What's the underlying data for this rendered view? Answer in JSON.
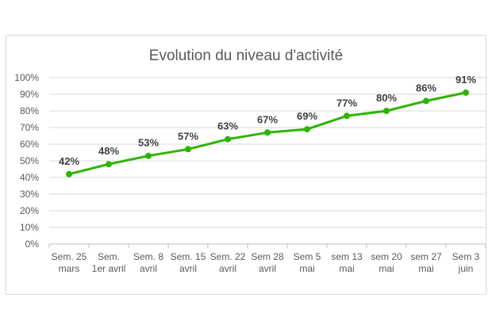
{
  "chart_data": {
    "type": "line",
    "title": "Evolution du niveau d'activité",
    "xlabel": "",
    "ylabel": "",
    "categories": [
      [
        "Sem. 25",
        "mars"
      ],
      [
        "Sem.",
        "1er avril"
      ],
      [
        "Sem. 8",
        "avril"
      ],
      [
        "Sem. 15",
        "avril"
      ],
      [
        "Sem. 22",
        "avril"
      ],
      [
        "Sem 28",
        "avril"
      ],
      [
        "Sem 5",
        "mai"
      ],
      [
        "sem 13",
        "mai"
      ],
      [
        "sem 20",
        "mai"
      ],
      [
        "sem 27",
        "mai"
      ],
      [
        "Sem 3",
        "juin"
      ]
    ],
    "series": [
      {
        "values": [
          42,
          48,
          53,
          57,
          63,
          67,
          69,
          77,
          80,
          86,
          91
        ],
        "labels": [
          "42%",
          "48%",
          "53%",
          "57%",
          "63%",
          "67%",
          "69%",
          "77%",
          "80%",
          "86%",
          "91%"
        ]
      }
    ],
    "ylim": [
      0,
      100
    ],
    "yticks": [
      "0%",
      "10%",
      "20%",
      "30%",
      "40%",
      "50%",
      "60%",
      "70%",
      "80%",
      "90%",
      "100%"
    ],
    "grid": true,
    "legend": "none",
    "colors": {
      "line": "#2db400",
      "grid": "#d9d9d9",
      "axis": "#bfbfbf"
    }
  }
}
